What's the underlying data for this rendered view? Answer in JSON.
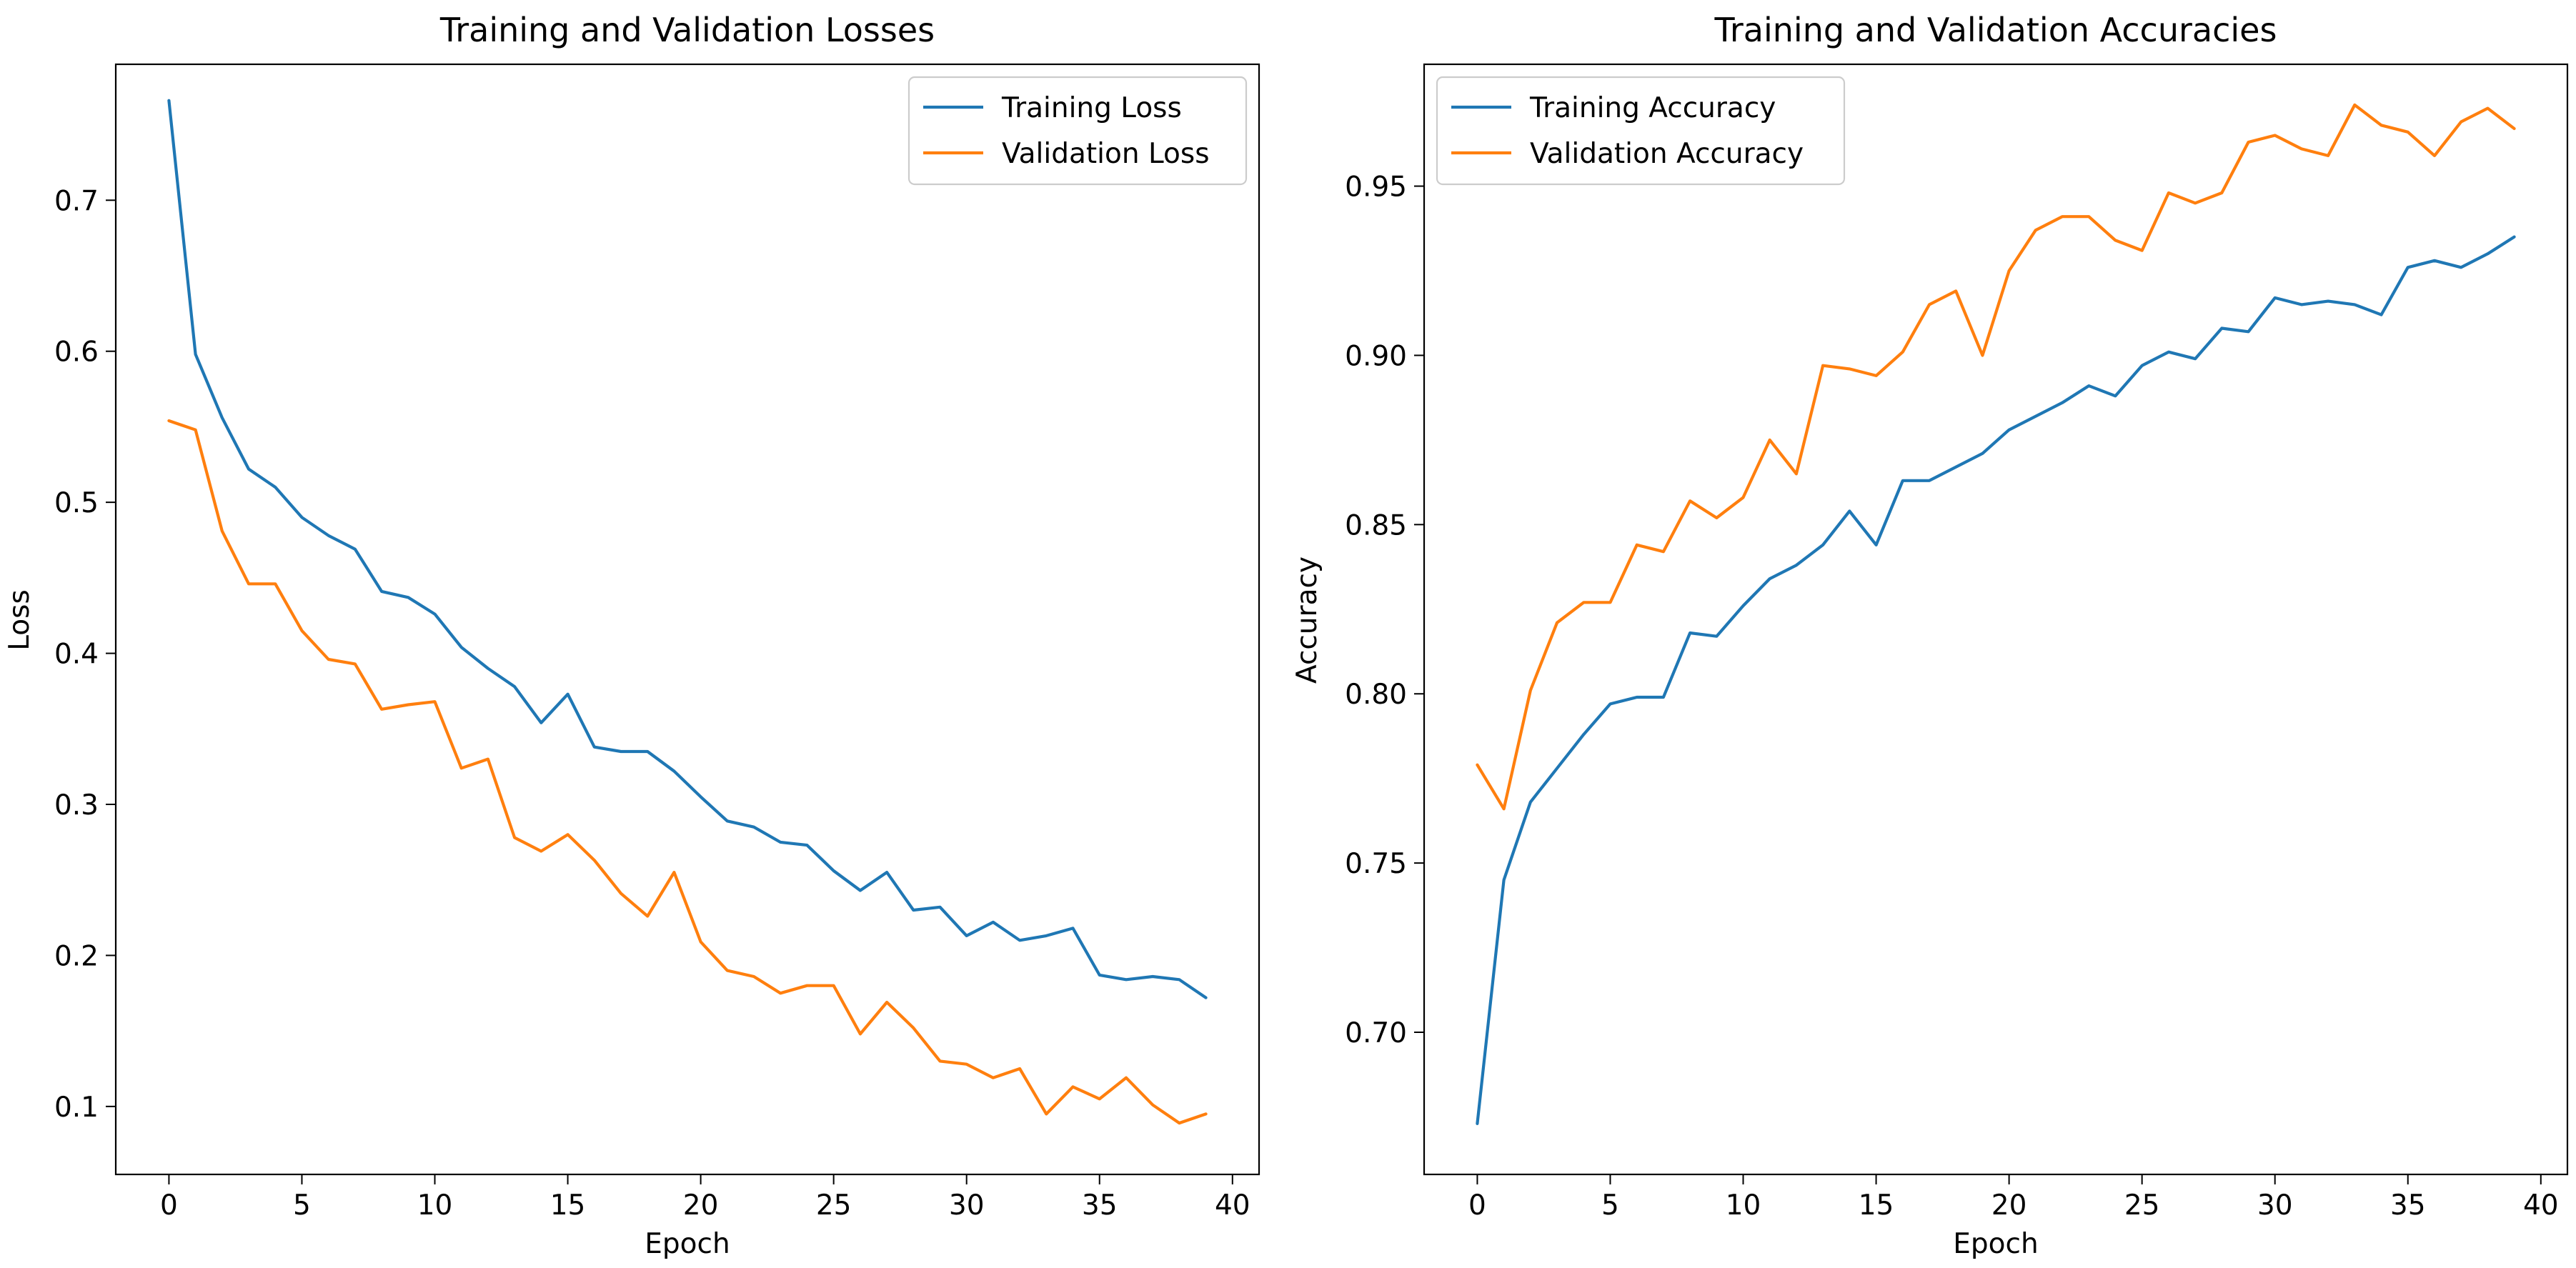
{
  "colors": {
    "training": "#1f77b4",
    "validation": "#ff7f0e"
  },
  "chart_data": [
    {
      "type": "line",
      "title": "Training and Validation Losses",
      "xlabel": "Epoch",
      "ylabel": "Loss",
      "xlim": [
        -2,
        41
      ],
      "ylim": [
        0.055,
        0.79
      ],
      "xticks": [
        0,
        5,
        10,
        15,
        20,
        25,
        30,
        35,
        40
      ],
      "yticks": [
        0.1,
        0.2,
        0.3,
        0.4,
        0.5,
        0.6,
        0.7
      ],
      "legend": "top-right",
      "series": [
        {
          "name": "Training Loss",
          "color_key": "training",
          "x": [
            0,
            1,
            2,
            3,
            4,
            5,
            6,
            7,
            8,
            9,
            10,
            11,
            12,
            13,
            14,
            15,
            16,
            17,
            18,
            19,
            20,
            21,
            22,
            23,
            24,
            25,
            26,
            27,
            28,
            29,
            30,
            31,
            32,
            33,
            34,
            35,
            36,
            37,
            38,
            39
          ],
          "values": [
            0.766,
            0.598,
            0.556,
            0.522,
            0.51,
            0.49,
            0.478,
            0.469,
            0.441,
            0.437,
            0.426,
            0.404,
            0.39,
            0.378,
            0.354,
            0.373,
            0.338,
            0.335,
            0.335,
            0.322,
            0.305,
            0.289,
            0.285,
            0.275,
            0.273,
            0.256,
            0.243,
            0.255,
            0.23,
            0.232,
            0.213,
            0.222,
            0.21,
            0.213,
            0.218,
            0.187,
            0.184,
            0.186,
            0.184,
            0.172
          ]
        },
        {
          "name": "Validation Loss",
          "color_key": "validation",
          "x": [
            0,
            1,
            2,
            3,
            4,
            5,
            6,
            7,
            8,
            9,
            10,
            11,
            12,
            13,
            14,
            15,
            16,
            17,
            18,
            19,
            20,
            21,
            22,
            23,
            24,
            25,
            26,
            27,
            28,
            29,
            30,
            31,
            32,
            33,
            34,
            35,
            36,
            37,
            38,
            39
          ],
          "values": [
            0.554,
            0.548,
            0.481,
            0.446,
            0.446,
            0.415,
            0.396,
            0.393,
            0.363,
            0.366,
            0.368,
            0.324,
            0.33,
            0.278,
            0.269,
            0.28,
            0.263,
            0.241,
            0.226,
            0.255,
            0.209,
            0.19,
            0.186,
            0.175,
            0.18,
            0.18,
            0.148,
            0.169,
            0.152,
            0.13,
            0.128,
            0.119,
            0.125,
            0.095,
            0.113,
            0.105,
            0.119,
            0.101,
            0.089,
            0.095
          ]
        }
      ]
    },
    {
      "type": "line",
      "title": "Training and Validation Accuracies",
      "xlabel": "Epoch",
      "ylabel": "Accuracy",
      "xlim": [
        -2,
        41
      ],
      "ylim": [
        0.658,
        0.986
      ],
      "xticks": [
        0,
        5,
        10,
        15,
        20,
        25,
        30,
        35,
        40
      ],
      "yticks": [
        0.7,
        0.75,
        0.8,
        0.85,
        0.9,
        0.95
      ],
      "legend": "top-left",
      "series": [
        {
          "name": "Training Accuracy",
          "color_key": "training",
          "x": [
            0,
            1,
            2,
            3,
            4,
            5,
            6,
            7,
            8,
            9,
            10,
            11,
            12,
            13,
            14,
            15,
            16,
            17,
            18,
            19,
            20,
            21,
            22,
            23,
            24,
            25,
            26,
            27,
            28,
            29,
            30,
            31,
            32,
            33,
            34,
            35,
            36,
            37,
            38,
            39
          ],
          "values": [
            0.673,
            0.745,
            0.768,
            0.778,
            0.788,
            0.797,
            0.799,
            0.799,
            0.818,
            0.817,
            0.826,
            0.834,
            0.838,
            0.844,
            0.854,
            0.844,
            0.863,
            0.863,
            0.867,
            0.871,
            0.878,
            0.882,
            0.886,
            0.891,
            0.888,
            0.897,
            0.901,
            0.899,
            0.908,
            0.907,
            0.917,
            0.915,
            0.916,
            0.915,
            0.912,
            0.926,
            0.928,
            0.926,
            0.93,
            0.935
          ]
        },
        {
          "name": "Validation Accuracy",
          "color_key": "validation",
          "x": [
            0,
            1,
            2,
            3,
            4,
            5,
            6,
            7,
            8,
            9,
            10,
            11,
            12,
            13,
            14,
            15,
            16,
            17,
            18,
            19,
            20,
            21,
            22,
            23,
            24,
            25,
            26,
            27,
            28,
            29,
            30,
            31,
            32,
            33,
            34,
            35,
            36,
            37,
            38,
            39
          ],
          "values": [
            0.779,
            0.766,
            0.801,
            0.821,
            0.827,
            0.827,
            0.844,
            0.842,
            0.857,
            0.852,
            0.858,
            0.875,
            0.865,
            0.897,
            0.896,
            0.894,
            0.901,
            0.915,
            0.919,
            0.9,
            0.925,
            0.937,
            0.941,
            0.941,
            0.934,
            0.931,
            0.948,
            0.945,
            0.948,
            0.963,
            0.965,
            0.961,
            0.959,
            0.974,
            0.968,
            0.966,
            0.959,
            0.969,
            0.973,
            0.967
          ]
        }
      ]
    }
  ]
}
